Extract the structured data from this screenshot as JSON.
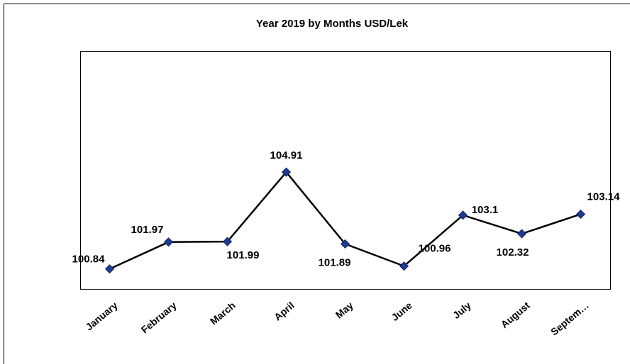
{
  "chart_data": {
    "type": "line",
    "title": "Year 2019  by Months USD/Lek",
    "categories": [
      "January",
      "February",
      "March",
      "April",
      "May",
      "June",
      "July",
      "August",
      "Septem…"
    ],
    "series": [
      {
        "name": "USD/Lek",
        "color": "#000000",
        "marker_color": "#1f3a93",
        "values": [
          100.84,
          101.97,
          101.99,
          104.91,
          101.89,
          100.96,
          103.1,
          102.32,
          103.14
        ]
      }
    ],
    "ylim": [
      100,
      110
    ],
    "grid": false
  }
}
